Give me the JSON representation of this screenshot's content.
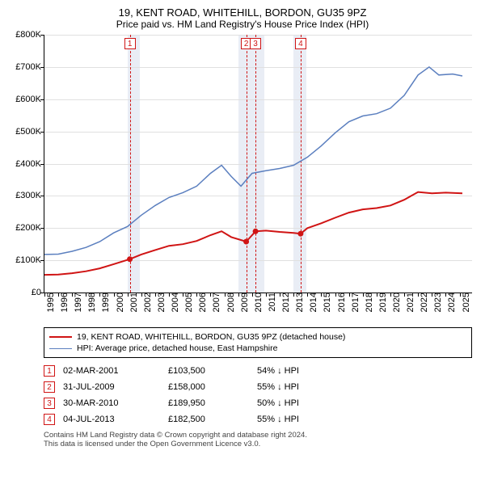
{
  "title": {
    "line1": "19, KENT ROAD, WHITEHILL, BORDON, GU35 9PZ",
    "line2": "Price paid vs. HM Land Registry's House Price Index (HPI)"
  },
  "chart": {
    "type": "line",
    "background_color": "#ffffff",
    "grid_color": "#e0e0e0",
    "shade_color": "#e9edf5",
    "x_range": [
      1995,
      2025.9
    ],
    "x_ticks": [
      1995,
      1996,
      1997,
      1998,
      1999,
      2000,
      2001,
      2002,
      2003,
      2004,
      2005,
      2006,
      2007,
      2008,
      2009,
      2010,
      2011,
      2012,
      2013,
      2014,
      2015,
      2016,
      2017,
      2018,
      2019,
      2020,
      2021,
      2022,
      2023,
      2024,
      2025
    ],
    "x_tick_label_fontsize": 11,
    "y_range": [
      0,
      800000
    ],
    "y_ticks": [
      0,
      100000,
      200000,
      300000,
      400000,
      500000,
      600000,
      700000,
      800000
    ],
    "y_tick_labels": [
      "£0",
      "£100K",
      "£200K",
      "£300K",
      "£400K",
      "£500K",
      "£600K",
      "£700K",
      "£800K"
    ],
    "y_tick_label_fontsize": 11,
    "shade_bands": [
      [
        2001.0,
        2001.9
      ],
      [
        2009.0,
        2010.9
      ],
      [
        2013.0,
        2013.9
      ]
    ],
    "series_hpi": {
      "color": "#5b7fbf",
      "width": 1.5,
      "label": "HPI: Average price, detached house, East Hampshire",
      "points": [
        [
          1995.0,
          118000
        ],
        [
          1996.0,
          119000
        ],
        [
          1997.0,
          128000
        ],
        [
          1998.0,
          140000
        ],
        [
          1999.0,
          158000
        ],
        [
          2000.0,
          185000
        ],
        [
          2001.0,
          205000
        ],
        [
          2002.0,
          240000
        ],
        [
          2003.0,
          270000
        ],
        [
          2004.0,
          295000
        ],
        [
          2005.0,
          310000
        ],
        [
          2006.0,
          330000
        ],
        [
          2007.0,
          370000
        ],
        [
          2007.8,
          395000
        ],
        [
          2008.5,
          360000
        ],
        [
          2009.2,
          330000
        ],
        [
          2010.0,
          370000
        ],
        [
          2011.0,
          378000
        ],
        [
          2012.0,
          385000
        ],
        [
          2013.0,
          395000
        ],
        [
          2014.0,
          420000
        ],
        [
          2015.0,
          455000
        ],
        [
          2016.0,
          495000
        ],
        [
          2017.0,
          530000
        ],
        [
          2018.0,
          548000
        ],
        [
          2019.0,
          555000
        ],
        [
          2020.0,
          572000
        ],
        [
          2021.0,
          612000
        ],
        [
          2022.0,
          675000
        ],
        [
          2022.8,
          700000
        ],
        [
          2023.5,
          675000
        ],
        [
          2024.5,
          678000
        ],
        [
          2025.2,
          672000
        ]
      ]
    },
    "series_property": {
      "color": "#d01414",
      "width": 2,
      "label": "19, KENT ROAD, WHITEHILL, BORDON, GU35 9PZ (detached house)",
      "points": [
        [
          1995.0,
          55000
        ],
        [
          1996.0,
          56000
        ],
        [
          1997.0,
          60000
        ],
        [
          1998.0,
          66000
        ],
        [
          1999.0,
          75000
        ],
        [
          2000.0,
          88000
        ],
        [
          2001.17,
          103500
        ],
        [
          2002.0,
          118000
        ],
        [
          2003.0,
          132000
        ],
        [
          2004.0,
          145000
        ],
        [
          2005.0,
          150000
        ],
        [
          2006.0,
          160000
        ],
        [
          2007.0,
          178000
        ],
        [
          2007.8,
          190000
        ],
        [
          2008.5,
          172000
        ],
        [
          2009.58,
          158000
        ],
        [
          2010.25,
          189950
        ],
        [
          2011.0,
          192000
        ],
        [
          2012.0,
          188000
        ],
        [
          2013.0,
          185000
        ],
        [
          2013.51,
          182500
        ],
        [
          2014.0,
          200000
        ],
        [
          2015.0,
          215000
        ],
        [
          2016.0,
          232000
        ],
        [
          2017.0,
          248000
        ],
        [
          2018.0,
          258000
        ],
        [
          2019.0,
          262000
        ],
        [
          2020.0,
          270000
        ],
        [
          2021.0,
          288000
        ],
        [
          2022.0,
          312000
        ],
        [
          2023.0,
          308000
        ],
        [
          2024.0,
          310000
        ],
        [
          2025.2,
          308000
        ]
      ]
    },
    "sale_markers": [
      {
        "n": "1",
        "x": 2001.17,
        "y": 103500
      },
      {
        "n": "2",
        "x": 2009.58,
        "y": 158000
      },
      {
        "n": "3",
        "x": 2010.25,
        "y": 189950
      },
      {
        "n": "4",
        "x": 2013.51,
        "y": 182500
      }
    ],
    "marker_color": "#d01414"
  },
  "legend": {
    "row1": "19, KENT ROAD, WHITEHILL, BORDON, GU35 9PZ (detached house)",
    "row2": "HPI: Average price, detached house, East Hampshire"
  },
  "sales": [
    {
      "n": "1",
      "date": "02-MAR-2001",
      "price": "£103,500",
      "delta": "54% ↓ HPI"
    },
    {
      "n": "2",
      "date": "31-JUL-2009",
      "price": "£158,000",
      "delta": "55% ↓ HPI"
    },
    {
      "n": "3",
      "date": "30-MAR-2010",
      "price": "£189,950",
      "delta": "50% ↓ HPI"
    },
    {
      "n": "4",
      "date": "04-JUL-2013",
      "price": "£182,500",
      "delta": "55% ↓ HPI"
    }
  ],
  "footnote": {
    "line1": "Contains HM Land Registry data © Crown copyright and database right 2024.",
    "line2": "This data is licensed under the Open Government Licence v3.0."
  }
}
